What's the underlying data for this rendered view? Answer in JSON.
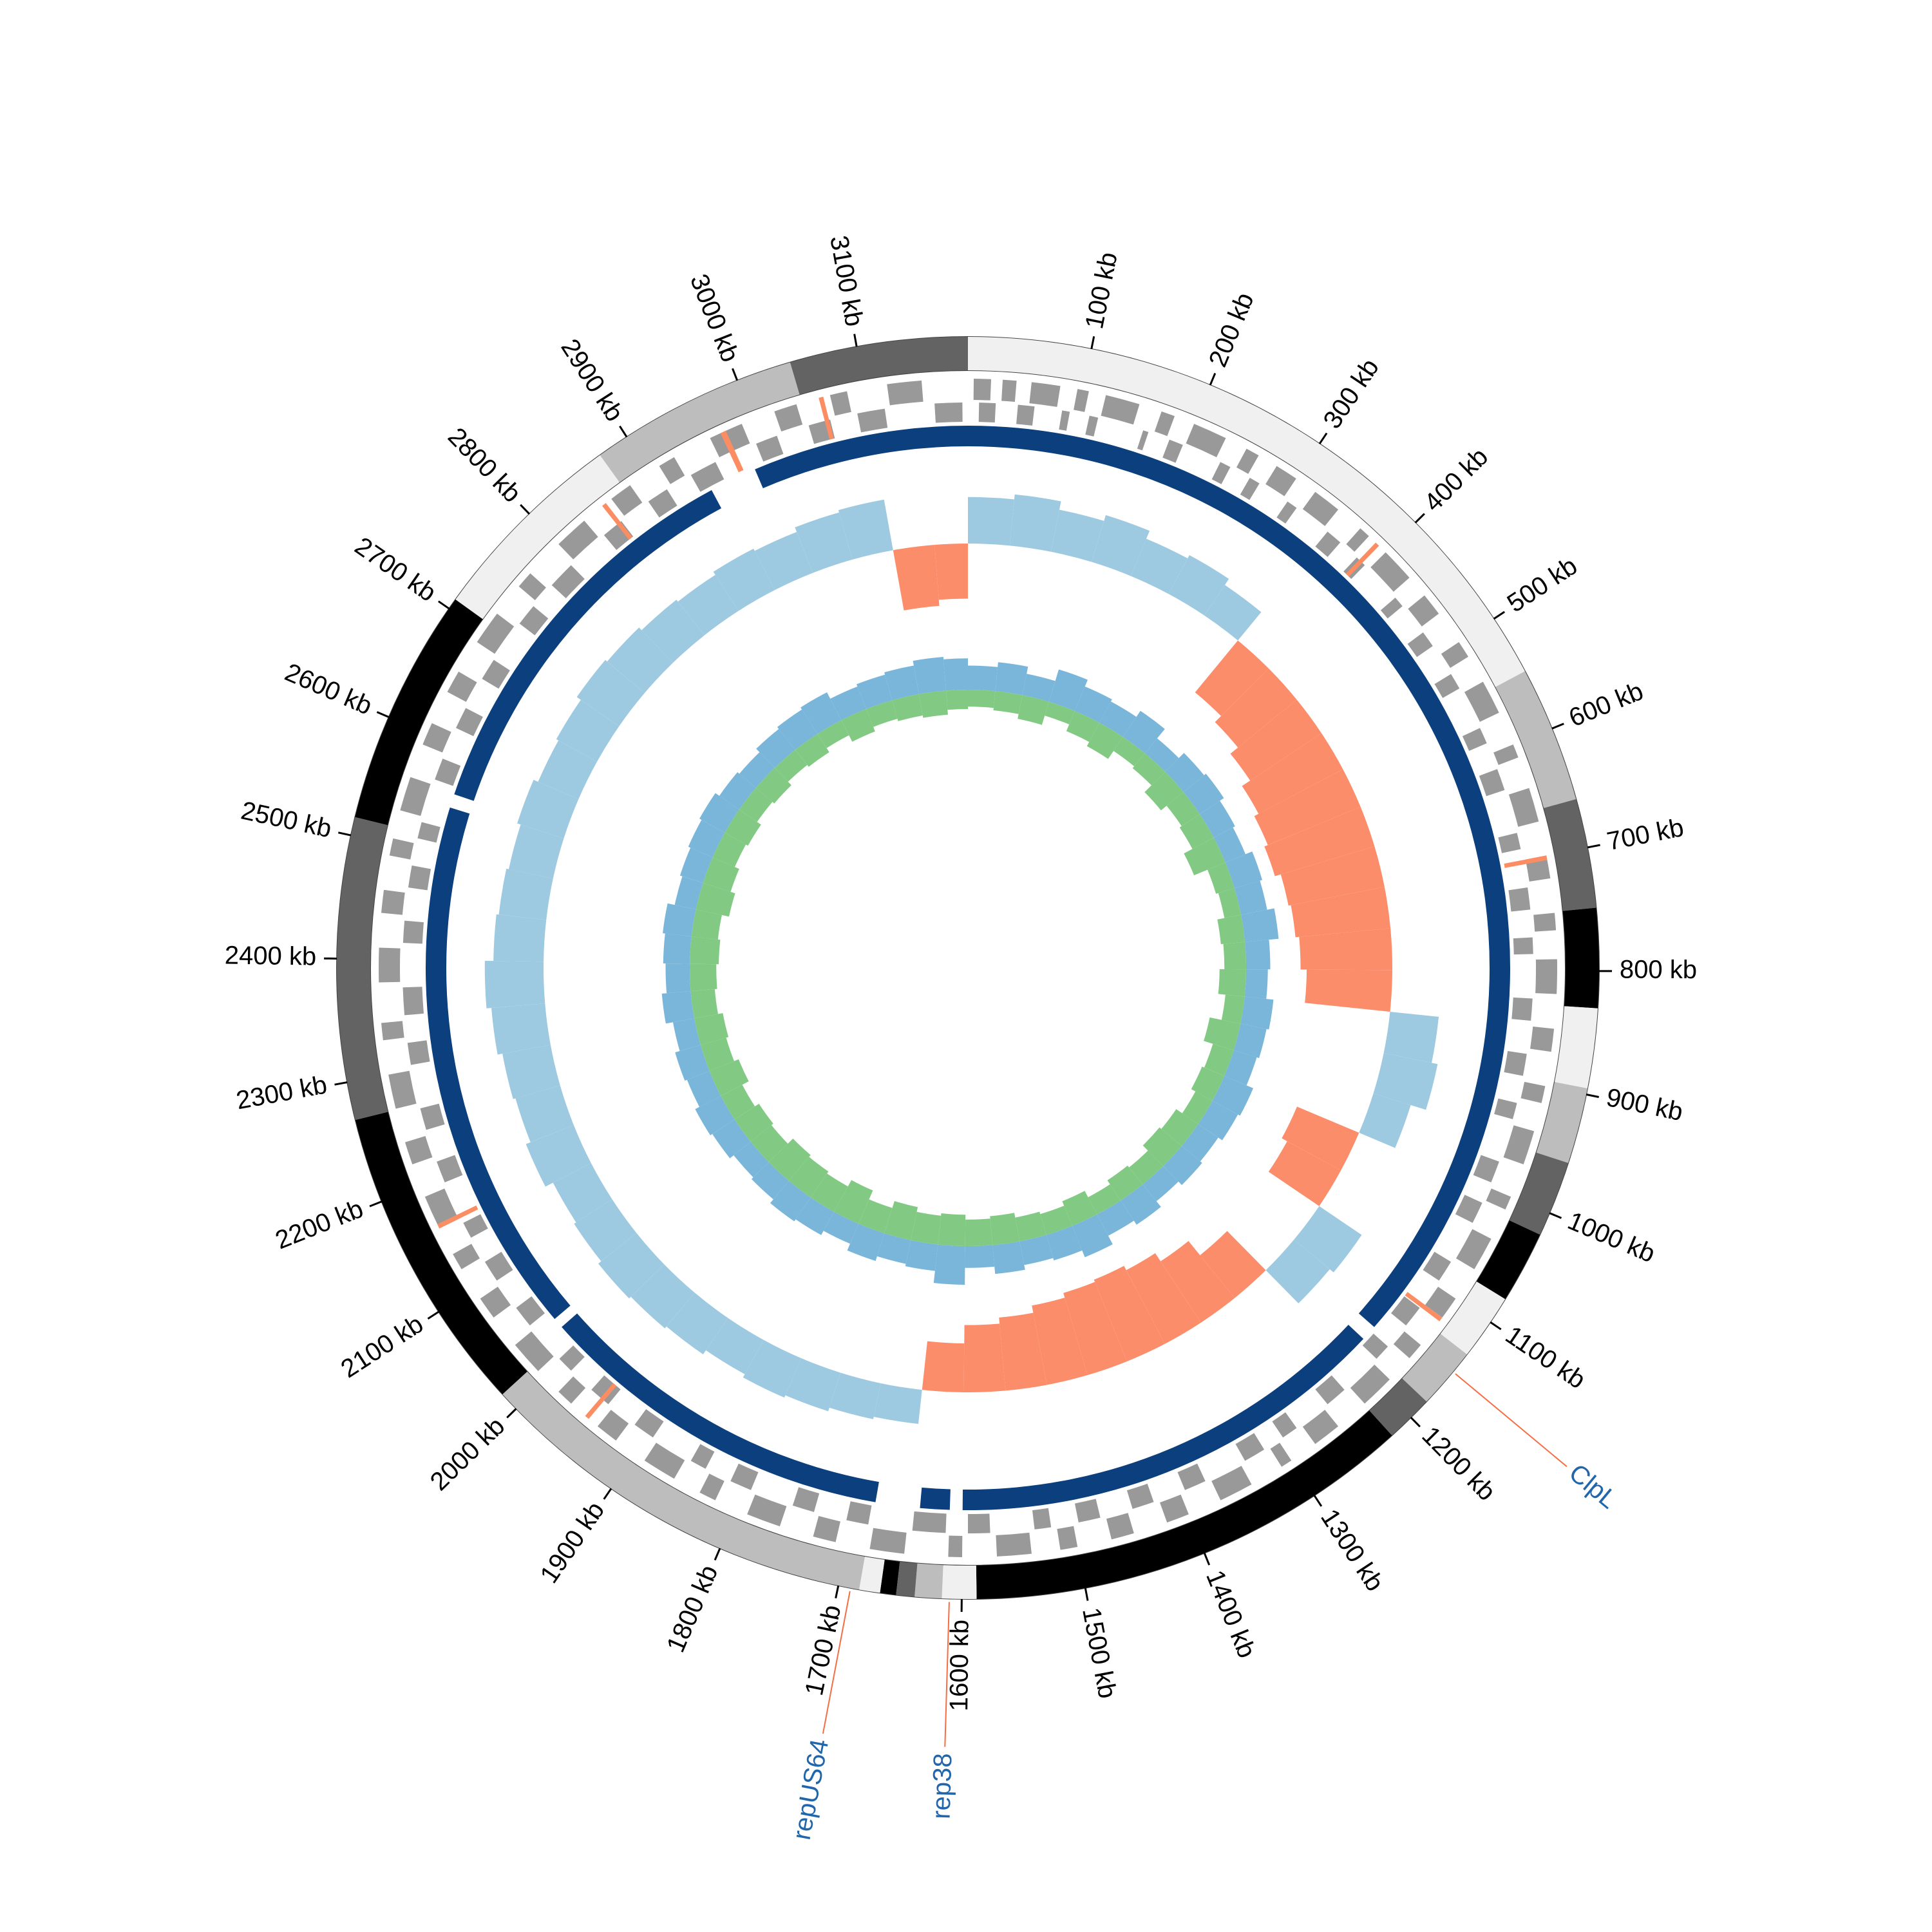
{
  "chart_data": {
    "type": "circular-genome",
    "xlim": [
      0,
      3190
    ],
    "ticks": [
      {
        "value": 100,
        "label": "100 kb"
      },
      {
        "value": 200,
        "label": "200 kb"
      },
      {
        "value": 300,
        "label": "300 kb"
      },
      {
        "value": 400,
        "label": "400 kb"
      },
      {
        "value": 500,
        "label": "500 kb"
      },
      {
        "value": 600,
        "label": "600 kb"
      },
      {
        "value": 700,
        "label": "700 kb"
      },
      {
        "value": 800,
        "label": "800 kb"
      },
      {
        "value": 900,
        "label": "900 kb"
      },
      {
        "value": 1000,
        "label": "1000 kb"
      },
      {
        "value": 1100,
        "label": "1100 kb"
      },
      {
        "value": 1200,
        "label": "1200 kb"
      },
      {
        "value": 1300,
        "label": "1300 kb"
      },
      {
        "value": 1400,
        "label": "1400 kb"
      },
      {
        "value": 1500,
        "label": "1500 kb"
      },
      {
        "value": 1600,
        "label": "1600 kb"
      },
      {
        "value": 1700,
        "label": "1700 kb"
      },
      {
        "value": 1800,
        "label": "1800 kb"
      },
      {
        "value": 1900,
        "label": "1900 kb"
      },
      {
        "value": 2000,
        "label": "2000 kb"
      },
      {
        "value": 2100,
        "label": "2100 kb"
      },
      {
        "value": 2200,
        "label": "2200 kb"
      },
      {
        "value": 2300,
        "label": "2300 kb"
      },
      {
        "value": 2400,
        "label": "2400 kb"
      },
      {
        "value": 2500,
        "label": "2500 kb"
      },
      {
        "value": 2600,
        "label": "2600 kb"
      },
      {
        "value": 2700,
        "label": "2700 kb"
      },
      {
        "value": 2800,
        "label": "2800 kb"
      },
      {
        "value": 2900,
        "label": "2900 kb"
      },
      {
        "value": 3000,
        "label": "3000 kb"
      },
      {
        "value": 3100,
        "label": "3100 kb"
      }
    ],
    "annotations": [
      {
        "label": "ClpL",
        "position": 1150,
        "color": "#2166ac",
        "line_color": "#f46d43"
      },
      {
        "label": "rep38",
        "position": 1610,
        "color": "#2166ac",
        "line_color": "#f46d43"
      },
      {
        "label": "repUS64",
        "position": 1690,
        "color": "#2166ac",
        "line_color": "#f46d43"
      }
    ],
    "contigs": [
      {
        "start": 0,
        "end": 549,
        "color": "#f0f0f0"
      },
      {
        "start": 549,
        "end": 660,
        "color": "#bdbdbd"
      },
      {
        "start": 660,
        "end": 749,
        "color": "#636363"
      },
      {
        "start": 749,
        "end": 830,
        "color": "#000000"
      },
      {
        "start": 830,
        "end": 895,
        "color": "#f0f0f0"
      },
      {
        "start": 895,
        "end": 957,
        "color": "#bdbdbd"
      },
      {
        "start": 957,
        "end": 1019,
        "color": "#636363"
      },
      {
        "start": 1019,
        "end": 1078,
        "color": "#000000"
      },
      {
        "start": 1078,
        "end": 1132,
        "color": "#f0f0f0"
      },
      {
        "start": 1132,
        "end": 1182,
        "color": "#bdbdbd"
      },
      {
        "start": 1182,
        "end": 1221,
        "color": "#636363"
      },
      {
        "start": 1221,
        "end": 1588,
        "color": "#000000"
      },
      {
        "start": 1588,
        "end": 1616,
        "color": "#f0f0f0"
      },
      {
        "start": 1616,
        "end": 1638,
        "color": "#bdbdbd"
      },
      {
        "start": 1638,
        "end": 1653,
        "color": "#636363"
      },
      {
        "start": 1653,
        "end": 1666,
        "color": "#000000"
      },
      {
        "start": 1666,
        "end": 1683,
        "color": "#f0f0f0"
      },
      {
        "start": 1683,
        "end": 2016,
        "color": "#bdbdbd"
      },
      {
        "start": 2016,
        "end": 2269,
        "color": "#000000"
      },
      {
        "start": 2269,
        "end": 2515,
        "color": "#636363"
      },
      {
        "start": 2515,
        "end": 2709,
        "color": "#000000"
      },
      {
        "start": 2709,
        "end": 2874,
        "color": "#f0f0f0"
      },
      {
        "start": 2874,
        "end": 3045,
        "color": "#bdbdbd"
      },
      {
        "start": 3045,
        "end": 3190,
        "color": "#636363"
      }
    ],
    "genes": {
      "color": "#999999",
      "highlight_color": "#fc8d62",
      "forward": [
        [
          5,
          20
        ],
        [
          30,
          42
        ],
        [
          55,
          80
        ],
        [
          95,
          105
        ],
        [
          120,
          150
        ],
        [
          170,
          182
        ],
        [
          200,
          230
        ],
        [
          250,
          262
        ],
        [
          280,
          300
        ],
        [
          320,
          345
        ],
        [
          370,
          380
        ],
        [
          400,
          430
        ],
        [
          450,
          470
        ],
        [
          500,
          515
        ],
        [
          540,
          570
        ],
        [
          600,
          612
        ],
        [
          640,
          670
        ],
        [
          700,
          720
        ],
        [
          750,
          765
        ],
        [
          790,
          820
        ],
        [
          850,
          870
        ],
        [
          900,
          915
        ],
        [
          940,
          970
        ],
        [
          1000,
          1012
        ],
        [
          1040,
          1070
        ],
        [
          1100,
          1120
        ],
        [
          1150,
          1165
        ],
        [
          1190,
          1220
        ],
        [
          1250,
          1275
        ],
        [
          1300,
          1310
        ],
        [
          1340,
          1370
        ],
        [
          1400,
          1420
        ],
        [
          1450,
          1470
        ],
        [
          1500,
          1515
        ],
        [
          1540,
          1570
        ],
        [
          1600,
          1612
        ],
        [
          1650,
          1680
        ],
        [
          1710,
          1730
        ],
        [
          1760,
          1790
        ],
        [
          1820,
          1835
        ],
        [
          1860,
          1890
        ],
        [
          1920,
          1940
        ],
        [
          1970,
          1985
        ],
        [
          2010,
          2040
        ],
        [
          2070,
          2090
        ],
        [
          2120,
          2135
        ],
        [
          2160,
          2190
        ],
        [
          2220,
          2240
        ],
        [
          2270,
          2300
        ],
        [
          2330,
          2345
        ],
        [
          2380,
          2410
        ],
        [
          2440,
          2460
        ],
        [
          2490,
          2505
        ],
        [
          2530,
          2560
        ],
        [
          2590,
          2610
        ],
        [
          2640,
          2660
        ],
        [
          2690,
          2720
        ],
        [
          2750,
          2765
        ],
        [
          2800,
          2830
        ],
        [
          2860,
          2880
        ],
        [
          2910,
          2925
        ],
        [
          2960,
          2990
        ],
        [
          3020,
          3040
        ],
        [
          3070,
          3085
        ],
        [
          3120,
          3150
        ]
      ],
      "reverse": [
        [
          10,
          25
        ],
        [
          45,
          60
        ],
        [
          85,
          92
        ],
        [
          110,
          118
        ],
        [
          160,
          165
        ],
        [
          185,
          198
        ],
        [
          235,
          245
        ],
        [
          265,
          275
        ],
        [
          305,
          315
        ],
        [
          350,
          365
        ],
        [
          385,
          395
        ],
        [
          435,
          445
        ],
        [
          475,
          490
        ],
        [
          520,
          535
        ],
        [
          575,
          590
        ],
        [
          615,
          635
        ],
        [
          675,
          690
        ],
        [
          725,
          745
        ],
        [
          770,
          785
        ],
        [
          825,
          845
        ],
        [
          875,
          895
        ],
        [
          920,
          935
        ],
        [
          975,
          995
        ],
        [
          1015,
          1035
        ],
        [
          1075,
          1095
        ],
        [
          1125,
          1145
        ],
        [
          1170,
          1185
        ],
        [
          1225,
          1245
        ],
        [
          1280,
          1295
        ],
        [
          1315,
          1335
        ],
        [
          1375,
          1395
        ],
        [
          1425,
          1445
        ],
        [
          1475,
          1495
        ],
        [
          1520,
          1535
        ],
        [
          1575,
          1595
        ],
        [
          1615,
          1645
        ],
        [
          1685,
          1705
        ],
        [
          1735,
          1755
        ],
        [
          1795,
          1815
        ],
        [
          1840,
          1855
        ],
        [
          1895,
          1915
        ],
        [
          1945,
          1965
        ],
        [
          1990,
          2005
        ],
        [
          2045,
          2065
        ],
        [
          2095,
          2115
        ],
        [
          2140,
          2155
        ],
        [
          2195,
          2215
        ],
        [
          2245,
          2265
        ],
        [
          2305,
          2325
        ],
        [
          2350,
          2375
        ],
        [
          2415,
          2435
        ],
        [
          2465,
          2485
        ],
        [
          2510,
          2525
        ],
        [
          2565,
          2585
        ],
        [
          2615,
          2635
        ],
        [
          2665,
          2685
        ],
        [
          2725,
          2745
        ],
        [
          2770,
          2795
        ],
        [
          2835,
          2855
        ],
        [
          2885,
          2905
        ],
        [
          2930,
          2955
        ],
        [
          2995,
          3015
        ],
        [
          3045,
          3065
        ],
        [
          3090,
          3115
        ],
        [
          3160,
          3185
        ]
      ],
      "highlighted": [
        [
          388,
          392
        ],
        [
          700,
          704
        ],
        [
          1120,
          1124
        ],
        [
          1950,
          1954
        ],
        [
          2160,
          2164
        ],
        [
          2850,
          2854
        ],
        [
          2970,
          2975
        ],
        [
          3060,
          3064
        ]
      ]
    },
    "hits": {
      "color": "#0b3f7d",
      "segments": [
        [
          0,
          1165
        ],
        [
          1180,
          1600
        ],
        [
          1612,
          1640
        ],
        [
          1682,
          2025
        ],
        [
          2035,
          2545
        ],
        [
          2558,
          2940
        ],
        [
          2985,
          3190
        ]
      ]
    },
    "x": [
      0,
      50,
      100,
      150,
      200,
      250,
      300,
      350,
      400,
      450,
      500,
      550,
      600,
      650,
      700,
      750,
      800,
      850,
      900,
      950,
      1000,
      1050,
      1100,
      1150,
      1200,
      1250,
      1300,
      1350,
      1400,
      1450,
      1500,
      1550,
      1600,
      1650,
      1700,
      1750,
      1800,
      1850,
      1900,
      1950,
      2000,
      2050,
      2100,
      2150,
      2200,
      2250,
      2300,
      2350,
      2400,
      2450,
      2500,
      2550,
      2600,
      2650,
      2700,
      2750,
      2800,
      2850,
      2900,
      2950,
      3000,
      3050,
      3100,
      3150
    ],
    "skew": {
      "ylim": [
        -1,
        0.5
      ],
      "positive_color": "#9ecae1",
      "negative_color": "#fc8d6b",
      "values": [
        0.38,
        0.42,
        0.35,
        0.4,
        0.33,
        0.36,
        0.3,
        -0.55,
        -0.62,
        -0.7,
        -0.78,
        -0.82,
        -0.85,
        -0.8,
        -0.78,
        -0.75,
        -0.7,
        0.4,
        0.45,
        0.32,
        -0.55,
        -0.5,
        0.42,
        0.38,
        -0.45,
        -0.6,
        -0.68,
        -0.72,
        -0.7,
        -0.66,
        -0.6,
        -0.55,
        -0.4,
        0.28,
        0.3,
        0.33,
        0.35,
        0.32,
        0.36,
        0.38,
        0.4,
        0.37,
        0.35,
        0.42,
        0.38,
        0.4,
        0.44,
        0.48,
        0.41,
        0.39,
        0.37,
        0.4,
        0.36,
        0.38,
        0.42,
        0.4,
        0.37,
        0.35,
        0.38,
        0.36,
        0.4,
        0.42,
        -0.5,
        -0.45
      ]
    },
    "gc": {
      "ylim": [
        -1,
        1
      ],
      "series": [
        {
          "color": "#6baed6",
          "values": [
            0.5,
            0.6,
            0.45,
            0.7,
            0.55,
            0.5,
            0.65,
            0.4,
            0.55,
            0.6,
            0.5,
            0.45,
            0.6,
            0.55,
            0.7,
            0.5,
            0.45,
            0.6,
            0.55,
            0.5,
            0.65,
            0.6,
            0.5,
            0.55,
            0.45,
            0.6,
            0.5,
            0.7,
            0.55,
            0.5,
            0.6,
            0.45,
            0.8,
            0.55,
            0.5,
            0.6,
            0.45,
            0.55,
            0.6,
            0.5,
            0.45,
            0.55,
            0.6,
            0.5,
            0.55,
            0.45,
            0.6,
            0.5,
            0.55,
            0.6,
            0.45,
            0.5,
            0.55,
            0.6,
            0.5,
            0.45,
            0.55,
            0.6,
            0.65,
            0.5,
            0.55,
            0.6,
            0.7,
            0.65
          ]
        },
        {
          "color": "#74c476",
          "values": [
            -0.35,
            -0.4,
            -0.5,
            -0.3,
            -0.45,
            -0.55,
            -0.35,
            -0.4,
            -0.6,
            -0.45,
            -0.5,
            -0.7,
            -0.4,
            -0.35,
            -0.5,
            -0.45,
            -0.55,
            -0.4,
            -0.65,
            -0.45,
            -0.5,
            -0.4,
            -0.55,
            -0.6,
            -0.45,
            -0.5,
            -0.4,
            -0.55,
            -0.45,
            -0.5,
            -0.6,
            -0.55,
            -0.65,
            -0.6,
            -0.7,
            -0.55,
            -0.75,
            -0.6,
            -0.65,
            -0.7,
            -0.55,
            -0.6,
            -0.5,
            -0.65,
            -0.55,
            -0.6,
            -0.5,
            -0.55,
            -0.6,
            -0.55,
            -0.7,
            -0.6,
            -0.5,
            -0.55,
            -0.45,
            -0.5,
            -0.4,
            -0.45,
            -0.35,
            -0.5,
            -0.4,
            -0.45,
            -0.5,
            -0.4
          ]
        }
      ]
    }
  }
}
